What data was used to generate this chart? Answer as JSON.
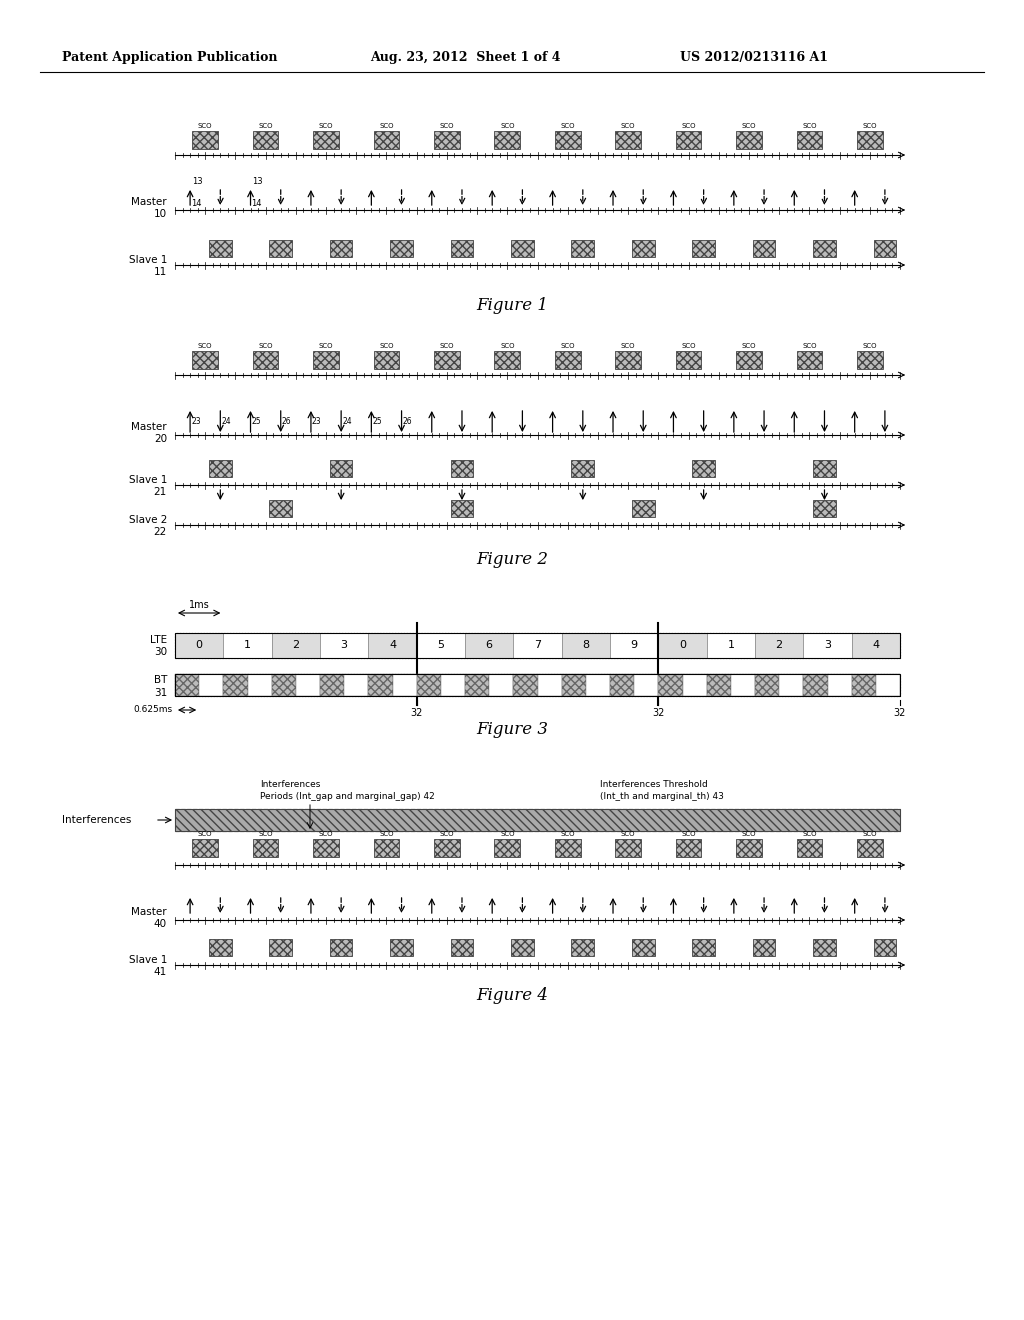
{
  "header_left": "Patent Application Publication",
  "header_mid": "Aug. 23, 2012  Sheet 1 of 4",
  "header_right": "US 2012/0213116 A1",
  "bg_color": "#ffffff",
  "fig1_caption": "Figure 1",
  "fig2_caption": "Figure 2",
  "fig3_caption": "Figure 3",
  "fig4_caption": "Figure 4",
  "fig3_lte_cells": [
    "0",
    "1",
    "2",
    "3",
    "4",
    "5",
    "6",
    "7",
    "8",
    "9",
    "0",
    "1",
    "2",
    "3",
    "4"
  ],
  "fig2_labels": [
    "23",
    "24",
    "25",
    "26",
    "23",
    "24",
    "25",
    "26"
  ]
}
